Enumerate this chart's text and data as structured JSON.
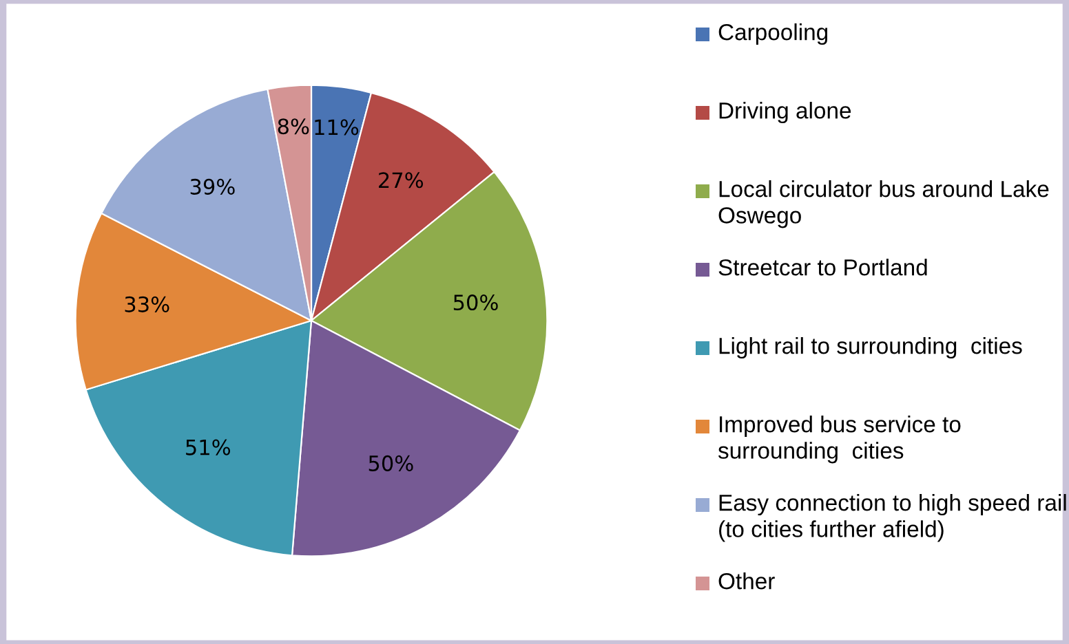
{
  "chart_data": {
    "type": "pie",
    "categories": [
      "Carpooling",
      "Driving alone",
      "Local circulator bus around Lake Oswego",
      "Streetcar to Portland",
      "Light rail to surrounding  cities",
      "Improved bus service to surrounding  cities",
      "Easy connection to high speed rail (to cities further afield)",
      "Other"
    ],
    "values": [
      11,
      27,
      50,
      50,
      51,
      33,
      39,
      8
    ],
    "value_labels": [
      "11%",
      "27%",
      "50%",
      "50%",
      "51%",
      "33%",
      "39%",
      "8%"
    ],
    "colors": [
      "#4a74b4",
      "#b44a46",
      "#8fac4c",
      "#765a94",
      "#3f9ab2",
      "#e2873a",
      "#98abd4",
      "#d49494"
    ],
    "legend": "right"
  }
}
